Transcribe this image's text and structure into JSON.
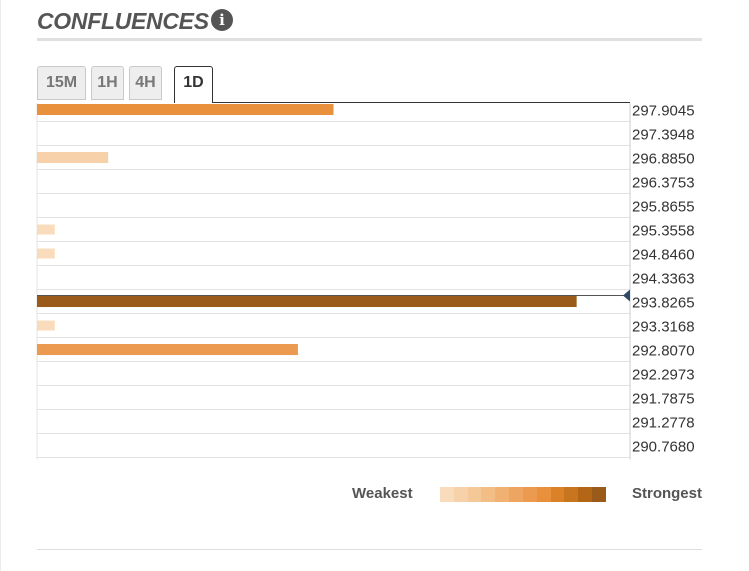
{
  "widget": {
    "title": "CONFLUENCES",
    "info_icon": "info-icon"
  },
  "tabs": [
    {
      "label": "15M",
      "active": false
    },
    {
      "label": "1H",
      "active": false
    },
    {
      "label": "4H",
      "active": false
    },
    {
      "label": "1D",
      "active": true
    }
  ],
  "legend": {
    "weakest_label": "Weakest",
    "strongest_label": "Strongest",
    "scale_colors": [
      "#f9dcbc",
      "#f7d1aa",
      "#f5c898",
      "#f3bd86",
      "#f1b173",
      "#eea561",
      "#eb9a4f",
      "#e8903c",
      "#db8228",
      "#c87520",
      "#b26616",
      "#9a5a1a"
    ]
  },
  "chart_data": {
    "type": "bar",
    "orientation": "horizontal",
    "price_levels": [
      "297.9045",
      "297.3948",
      "296.8850",
      "296.3753",
      "295.8655",
      "295.3558",
      "294.8460",
      "294.3363",
      "293.8265",
      "293.3168",
      "292.8070",
      "292.2973",
      "291.7875",
      "291.2778",
      "290.7680"
    ],
    "current_price": 293.8265,
    "bars": [
      {
        "price": 297.9045,
        "strength": 0.5,
        "color": "#e8903c"
      },
      {
        "price": 296.885,
        "strength": 0.12,
        "color": "#f7d1aa"
      },
      {
        "price": 295.3558,
        "strength": 0.03,
        "color": "#f9dcbc"
      },
      {
        "price": 294.846,
        "strength": 0.03,
        "color": "#f9dcbc"
      },
      {
        "price": 293.8265,
        "strength": 0.91,
        "color": "#9a5a1a"
      },
      {
        "price": 293.3168,
        "strength": 0.03,
        "color": "#f9dcbc"
      },
      {
        "price": 292.807,
        "strength": 0.44,
        "color": "#eb9a4f"
      }
    ]
  }
}
